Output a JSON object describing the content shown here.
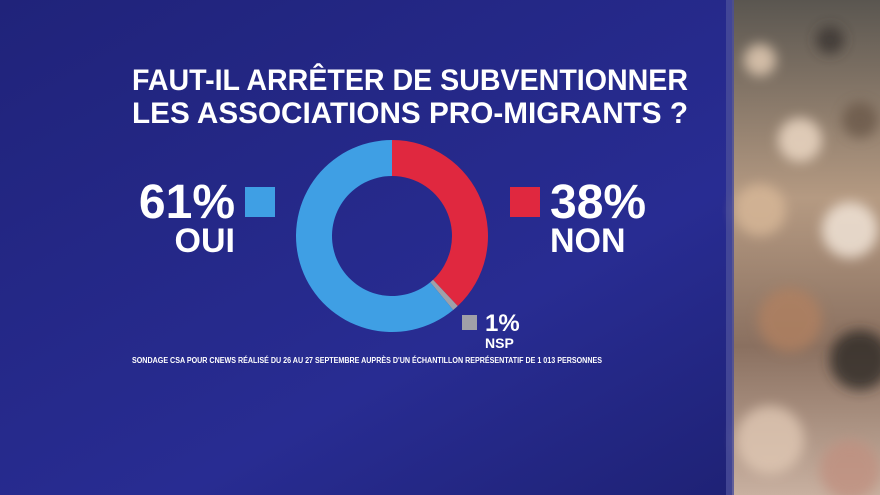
{
  "chart_data": {
    "type": "donut",
    "title": [
      "FAUT-IL ARRÊTER DE SUBVENTIONNER",
      "LES ASSOCIATIONS PRO-MIGRANTS ?"
    ],
    "categories": [
      "NON",
      "NSP",
      "OUI"
    ],
    "values": [
      38,
      1,
      61
    ],
    "value_labels": [
      "38%",
      "1%",
      "61%"
    ],
    "colors": [
      "#e0283f",
      "#a0a0a8",
      "#3f9fe4"
    ],
    "annotation": "SONDAGE CSA POUR CNEWS RÉALISÉ DU 26 AU 27 SEPTEMBRE AUPRÈS D'UN ÉCHANTILLON REPRÉSENTATIF DE 1 013 PERSONNES"
  }
}
